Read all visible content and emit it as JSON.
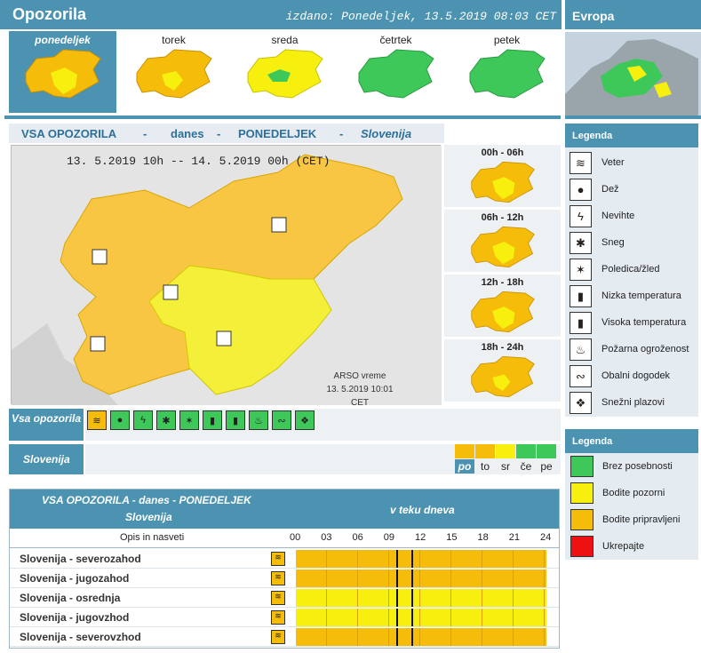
{
  "header": {
    "title": "Opozorila",
    "issued": "izdano: Ponedeljek, 13.5.2019 08:03 CET",
    "europe": "Evropa"
  },
  "days": [
    {
      "label": "ponedeljek",
      "color": "#f5bd0a"
    },
    {
      "label": "torek",
      "color": "#f5bd0a"
    },
    {
      "label": "sreda",
      "color": "#f7f00f"
    },
    {
      "label": "četrtek",
      "color": "#3ec85a"
    },
    {
      "label": "petek",
      "color": "#3ec85a"
    }
  ],
  "main_title": {
    "a": "VSA OPOZORILA",
    "dash1": "-",
    "b": "danes",
    "dash2": "-",
    "c": "PONEDELJEK",
    "dash3": "-",
    "d": "Slovenija"
  },
  "map": {
    "range": "13. 5.2019  10h  --  14. 5.2019  00h     (CET)",
    "credit": "ARSO vreme",
    "time": "13. 5.2019   10:01 CET"
  },
  "slots": [
    "00h - 06h",
    "06h - 12h",
    "12h - 18h",
    "18h - 24h"
  ],
  "vsa_label": "Vsa opozorila",
  "slovenija_label": "Slovenija",
  "day_legend": [
    {
      "abbr": "po",
      "color": "#f5bd0a"
    },
    {
      "abbr": "to",
      "color": "#f5bd0a"
    },
    {
      "abbr": "sr",
      "color": "#f7f00f"
    },
    {
      "abbr": "če",
      "color": "#3ec85a"
    },
    {
      "abbr": "pe",
      "color": "#3ec85a"
    }
  ],
  "table": {
    "title": "VSA OPOZORILA - danes - PONEDELJEK",
    "subtitle": "Slovenija",
    "during": "v teku dneva",
    "desc": "Opis in nasveti",
    "hours": [
      "00",
      "03",
      "06",
      "09",
      "12",
      "15",
      "18",
      "21",
      "24"
    ],
    "rows": [
      {
        "label": "Slovenija - severozahod",
        "level": "orange"
      },
      {
        "label": "Slovenija - jugozahod",
        "level": "orange"
      },
      {
        "label": "Slovenija - osrednja",
        "level": "yellow"
      },
      {
        "label": "Slovenija - jugovzhod",
        "level": "yellow"
      },
      {
        "label": "Slovenija - severovzhod",
        "level": "orange"
      }
    ]
  },
  "legend": {
    "title": "Legenda",
    "items": [
      {
        "label": "Veter",
        "icon": "wind-icon"
      },
      {
        "label": "Dež",
        "icon": "rain-icon"
      },
      {
        "label": "Nevihte",
        "icon": "lightning-icon"
      },
      {
        "label": "Sneg",
        "icon": "snow-icon"
      },
      {
        "label": "Poledica/žled",
        "icon": "ice-icon"
      },
      {
        "label": "Nizka temperatura",
        "icon": "low-temp-icon"
      },
      {
        "label": "Visoka temperatura",
        "icon": "high-temp-icon"
      },
      {
        "label": "Požarna ogroženost",
        "icon": "fire-icon"
      },
      {
        "label": "Obalni dogodek",
        "icon": "coastal-icon"
      },
      {
        "label": "Snežni plazovi",
        "icon": "avalanche-icon"
      }
    ]
  },
  "levels": {
    "title": "Legenda",
    "items": [
      {
        "label": "Brez posebnosti",
        "color": "#3ec85a"
      },
      {
        "label": "Bodite pozorni",
        "color": "#f7f00f"
      },
      {
        "label": "Bodite pripravljeni",
        "color": "#f5bd0a"
      },
      {
        "label": "Ukrepajte",
        "color": "#ee1111"
      }
    ]
  }
}
